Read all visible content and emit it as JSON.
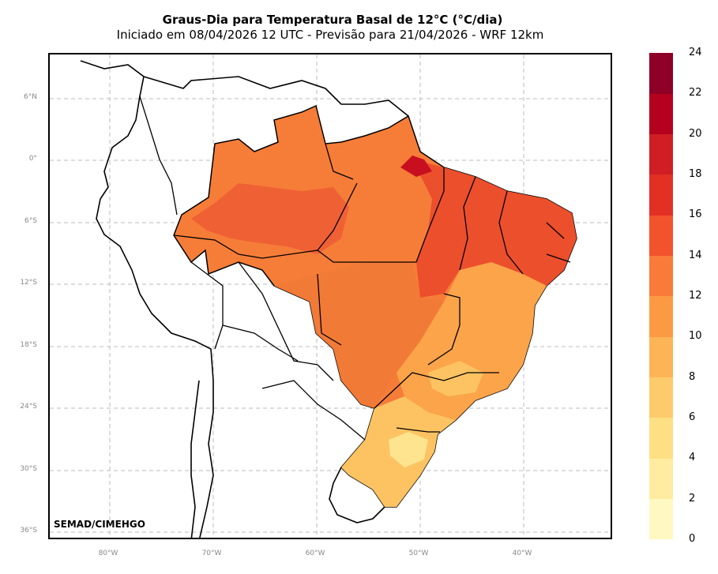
{
  "header": {
    "title": "Graus-Dia para Temperatura Basal de 12°C (°C/dia)",
    "subtitle": "Iniciado em 08/04/2026 12 UTC - Previsão para 21/04/2026 - WRF 12km"
  },
  "map": {
    "credit": "SEMAD/CIMEHGO",
    "lat_labels": [
      "6°N",
      "0°",
      "6°S",
      "12°S",
      "18°S",
      "24°S",
      "30°S",
      "36°S"
    ],
    "lon_labels": [
      "80°W",
      "70°W",
      "60°W",
      "50°W",
      "40°W"
    ],
    "region_colors": {
      "north_amazon": "#f67d38",
      "amazon_core": "#ef6134",
      "northeast_hot": "#ec4f2c",
      "central_west": "#f27a37",
      "southeast": "#fba44a",
      "south": "#fdc362",
      "south_cool": "#fee48e",
      "extreme": "#c80f1f"
    }
  },
  "colorbar": {
    "tick_labels": [
      "24",
      "22",
      "20",
      "18",
      "16",
      "14",
      "12",
      "10",
      "8",
      "6",
      "4",
      "2",
      "0"
    ],
    "colors": [
      "#fff8c0",
      "#ffeca0",
      "#fedf84",
      "#fdcb6b",
      "#fdb456",
      "#fc9a44",
      "#fa7b39",
      "#f3532c",
      "#e33025",
      "#d01e24",
      "#b5001f",
      "#8f0028"
    ]
  }
}
